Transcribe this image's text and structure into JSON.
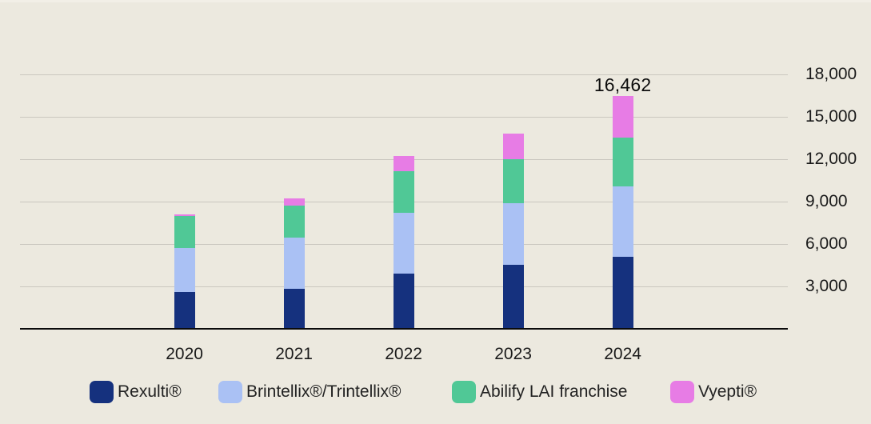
{
  "chart_data": {
    "type": "bar",
    "stacked": true,
    "title": "",
    "categories": [
      "2020",
      "2021",
      "2022",
      "2023",
      "2024"
    ],
    "series": [
      {
        "name": "Rexulti®",
        "color": "#15317E",
        "values": [
          2555,
          2760,
          3840,
          4470,
          5073
        ]
      },
      {
        "name": "Brintellix®/Trintellix®",
        "color": "#AAC1F4",
        "values": [
          3105,
          3645,
          4330,
          4390,
          4970
        ]
      },
      {
        "name": "Abilify LAI franchise",
        "color": "#50C896",
        "values": [
          2280,
          2280,
          2935,
          3130,
          3440
        ]
      },
      {
        "name": "Vyepti®",
        "color": "#E77CE5",
        "values": [
          115,
          515,
          1080,
          1820,
          2979
        ]
      }
    ],
    "totals": [
      8055,
      9200,
      12185,
      13810,
      16462
    ],
    "data_labels": [
      {
        "category": "2024",
        "text": "16,462"
      }
    ],
    "y_ticks": [
      {
        "value": 3000,
        "label": "3,000"
      },
      {
        "value": 6000,
        "label": "6,000"
      },
      {
        "value": 9000,
        "label": "9,000"
      },
      {
        "value": 12000,
        "label": "12,000"
      },
      {
        "value": 15000,
        "label": "15,000"
      },
      {
        "value": 18000,
        "label": "18,000"
      }
    ],
    "ylim": [
      0,
      18000
    ],
    "grid": true,
    "y_axis_side": "right",
    "legend_position": "bottom",
    "legend": [
      "Rexulti®",
      "Brintellix®/Trintellix®",
      "Abilify LAI franchise",
      "Vyepti®"
    ]
  },
  "colors": {
    "background": "#ECE9DF",
    "gridline": "#CAC7BF",
    "axis_line": "#0B0B0B",
    "tick_text": "#1A1A1A",
    "legend_text": "#222222",
    "data_label_text": "#0D0D0D"
  }
}
